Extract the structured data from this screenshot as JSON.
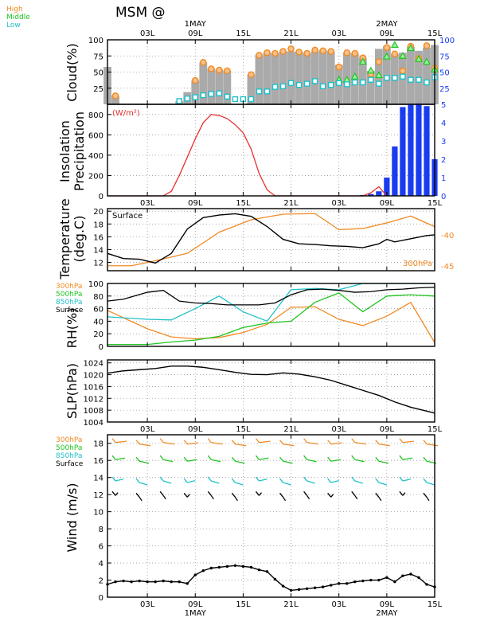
{
  "title": "MSM  @",
  "colors": {
    "high": "#f08a24",
    "middle": "#22c422",
    "low": "#20c0c8",
    "total_cloud": "#aaaaaa",
    "insolation": "#e83030",
    "precip": "#1a3cf0",
    "surface": "#000000",
    "h300": "#f08a24",
    "h500": "#22c422",
    "h850": "#20c0c8"
  },
  "time_axis": {
    "labels": [
      "03L",
      "09L",
      "15L",
      "21L",
      "03L",
      "09L",
      "15L"
    ],
    "label_hours": [
      3,
      9,
      15,
      21,
      27,
      33,
      39
    ],
    "dates_top": [
      {
        "hour": 9,
        "text": "1MAY"
      },
      {
        "hour": 33,
        "text": "2MAY"
      }
    ],
    "dates_bottom": [
      {
        "hour": 9,
        "text": "1MAY"
      },
      {
        "hour": 33,
        "text": "2MAY"
      }
    ],
    "range": [
      -2,
      39
    ]
  },
  "chart_data": [
    {
      "type": "bar",
      "panel": "cloud",
      "ylabel": "Cloud(%)",
      "legend": [
        "High",
        "Middle",
        "Low"
      ],
      "ylim": [
        0,
        100
      ],
      "left_ticks": [
        25,
        50,
        75,
        100
      ],
      "right_ticks": [
        25,
        50,
        75,
        100
      ],
      "x": [
        -2,
        -1,
        0,
        1,
        2,
        3,
        4,
        5,
        6,
        7,
        8,
        9,
        10,
        11,
        12,
        13,
        14,
        15,
        16,
        17,
        18,
        19,
        20,
        21,
        22,
        23,
        24,
        25,
        26,
        27,
        28,
        29,
        30,
        31,
        32,
        33,
        34,
        35,
        36,
        37,
        38,
        39
      ],
      "total": [
        58,
        13,
        0,
        0,
        0,
        0,
        0,
        0,
        0,
        5,
        19,
        37,
        65,
        55,
        53,
        52,
        0,
        0,
        46,
        76,
        80,
        79,
        82,
        82,
        81,
        79,
        82,
        84,
        82,
        61,
        80,
        79,
        72,
        52,
        86,
        90,
        78,
        80,
        89,
        83,
        88,
        92
      ],
      "high": [
        null,
        13,
        null,
        null,
        null,
        null,
        null,
        null,
        null,
        null,
        null,
        37,
        65,
        55,
        53,
        52,
        null,
        null,
        46,
        76,
        80,
        79,
        82,
        86,
        81,
        79,
        84,
        83,
        82,
        58,
        80,
        79,
        72,
        47,
        66,
        88,
        78,
        52,
        90,
        71,
        91,
        56
      ],
      "middle": [
        null,
        null,
        null,
        null,
        null,
        null,
        null,
        null,
        null,
        null,
        null,
        null,
        null,
        null,
        null,
        null,
        null,
        null,
        null,
        null,
        null,
        null,
        null,
        null,
        null,
        null,
        null,
        null,
        null,
        38,
        38,
        43,
        66,
        52,
        45,
        74,
        92,
        75,
        87,
        70,
        66,
        54
      ],
      "low": [
        null,
        null,
        null,
        null,
        null,
        null,
        null,
        null,
        null,
        5,
        9,
        11,
        14,
        16,
        17,
        12,
        8,
        8,
        8,
        20,
        20,
        27,
        28,
        33,
        30,
        32,
        36,
        28,
        30,
        33,
        31,
        34,
        34,
        38,
        32,
        41,
        41,
        43,
        38,
        38,
        34,
        42
      ]
    },
    {
      "type": "bar",
      "panel": "insolation_precipitation",
      "ylabel_lines": [
        "Insolation",
        "Precipitation"
      ],
      "unit_label": "(W/m²)",
      "left_ylim": [
        0,
        900
      ],
      "left_ticks": [
        0,
        200,
        400,
        600,
        800
      ],
      "right_ylim": [
        0,
        5
      ],
      "right_ticks": [
        0,
        1,
        2,
        3,
        4,
        5
      ],
      "insolation": {
        "x": [
          -2,
          0,
          2,
          4,
          5,
          6,
          7,
          8,
          9,
          10,
          11,
          12,
          13,
          14,
          15,
          16,
          17,
          18,
          19,
          20,
          21,
          22,
          24,
          26,
          28,
          30,
          31,
          32,
          33
        ],
        "y": [
          0,
          0,
          0,
          0,
          0,
          45,
          200,
          380,
          560,
          720,
          800,
          790,
          760,
          700,
          620,
          460,
          220,
          60,
          0,
          0,
          0,
          0,
          0,
          0,
          0,
          0,
          30,
          90,
          0
        ]
      },
      "precip": {
        "x": [
          30,
          31,
          32,
          33,
          34,
          35,
          36,
          37,
          38,
          39
        ],
        "y": [
          0.05,
          0.1,
          0.25,
          1.0,
          2.7,
          4.85,
          5.0,
          5.05,
          4.9,
          2.0
        ]
      }
    },
    {
      "type": "line",
      "panel": "temperature",
      "ylabel_lines": [
        "Temperature",
        "(deg.C)"
      ],
      "left_ylim": [
        10.7,
        20.4
      ],
      "left_ticks": [
        12,
        14,
        16,
        18,
        20
      ],
      "right_ticks": [
        -40,
        -45
      ],
      "surface_label": "Surface",
      "h300_label": "300hPa",
      "series": [
        {
          "name": "Surface",
          "axis": "left",
          "x": [
            -2,
            0,
            2,
            4,
            6,
            8,
            10,
            12,
            14,
            16,
            18,
            20,
            22,
            24,
            26,
            28,
            30,
            32,
            33,
            34,
            36,
            38,
            39
          ],
          "y": [
            13.4,
            12.6,
            12.5,
            11.9,
            13.4,
            17.2,
            19.0,
            19.4,
            19.6,
            19.2,
            17.6,
            15.6,
            14.9,
            14.8,
            14.6,
            14.5,
            14.3,
            14.9,
            15.6,
            15.2,
            15.7,
            16.2,
            16.3
          ]
        },
        {
          "name": "300hPa",
          "axis": "right",
          "ylim_right": [
            -45.8,
            -35.8
          ],
          "x": [
            -2,
            1,
            4,
            8,
            12,
            16,
            20,
            24,
            27,
            30,
            33,
            36,
            39
          ],
          "y": [
            -45.0,
            -45.0,
            -44.2,
            -43.0,
            -39.6,
            -37.6,
            -36.7,
            -36.6,
            -39.2,
            -39.0,
            -38.1,
            -37.0,
            -38.7
          ]
        }
      ]
    },
    {
      "type": "line",
      "panel": "rh",
      "ylabel": "RH(%)",
      "legend": [
        "300hPa",
        "500hPa",
        "850hPa",
        "Surface"
      ],
      "ylim": [
        0,
        100
      ],
      "left_ticks": [
        0,
        20,
        40,
        60,
        80,
        100
      ],
      "series": [
        {
          "name": "Surface",
          "x": [
            -2,
            0,
            3,
            5,
            7,
            9,
            11,
            13,
            15,
            17,
            19,
            21,
            23,
            25,
            27,
            29,
            31,
            33,
            35,
            37,
            39
          ],
          "y": [
            72,
            75,
            86,
            89,
            72,
            69,
            68,
            66,
            66,
            66,
            69,
            82,
            90,
            91,
            89,
            86,
            87,
            90,
            91,
            93,
            94
          ]
        },
        {
          "name": "850hPa",
          "x": [
            -2,
            3,
            6,
            9,
            12,
            15,
            18,
            21,
            24,
            27,
            30,
            33,
            36,
            39
          ],
          "y": [
            47,
            43,
            42,
            60,
            80,
            55,
            40,
            90,
            92,
            90,
            100,
            100,
            100,
            100
          ]
        },
        {
          "name": "500hPa",
          "x": [
            -2,
            3,
            6,
            9,
            12,
            15,
            18,
            21,
            24,
            27,
            30,
            33,
            36,
            39
          ],
          "y": [
            3,
            3,
            7,
            10,
            16,
            30,
            37,
            40,
            70,
            85,
            55,
            80,
            82,
            80
          ]
        },
        {
          "name": "300hPa",
          "x": [
            -2,
            3,
            6,
            9,
            12,
            15,
            18,
            21,
            24,
            27,
            30,
            33,
            36,
            39
          ],
          "y": [
            57,
            28,
            15,
            12,
            14,
            22,
            35,
            62,
            63,
            43,
            33,
            48,
            70,
            6
          ]
        }
      ]
    },
    {
      "type": "line",
      "panel": "slp",
      "ylabel": "SLP(hPa)",
      "ylim": [
        1004,
        1025
      ],
      "left_ticks": [
        1004,
        1008,
        1012,
        1016,
        1020,
        1024
      ],
      "series": [
        {
          "name": "SLP",
          "x": [
            -2,
            0,
            2,
            4,
            6,
            8,
            10,
            12,
            14,
            16,
            18,
            20,
            22,
            24,
            26,
            28,
            30,
            32,
            34,
            36,
            38,
            39
          ],
          "y": [
            1020.5,
            1021.3,
            1021.7,
            1022.1,
            1022.9,
            1022.9,
            1022.5,
            1021.7,
            1020.8,
            1020.1,
            1020.0,
            1020.6,
            1020.2,
            1019.3,
            1018.1,
            1016.4,
            1014.7,
            1013.0,
            1010.8,
            1009.0,
            1007.7,
            1007.0
          ]
        }
      ]
    },
    {
      "type": "line",
      "panel": "wind",
      "ylabel": "Wind (m/s)",
      "legend": [
        "300hPa",
        "500hPa",
        "850hPa",
        "Surface"
      ],
      "ylim": [
        0,
        19
      ],
      "left_ticks": [
        0,
        2,
        4,
        6,
        8,
        10,
        12,
        14,
        16,
        18
      ],
      "series": [
        {
          "name": "Surface",
          "x": [
            -2,
            -1,
            0,
            1,
            2,
            3,
            4,
            5,
            6,
            7,
            8,
            9,
            10,
            11,
            12,
            13,
            14,
            15,
            16,
            17,
            18,
            19,
            20,
            21,
            22,
            23,
            24,
            25,
            26,
            27,
            28,
            29,
            30,
            31,
            32,
            33,
            34,
            35,
            36,
            37,
            38,
            39
          ],
          "y": [
            1.5,
            1.8,
            1.9,
            1.8,
            1.9,
            1.8,
            1.8,
            1.9,
            1.8,
            1.8,
            1.6,
            2.6,
            3.1,
            3.4,
            3.5,
            3.6,
            3.7,
            3.6,
            3.5,
            3.2,
            3.0,
            2.1,
            1.3,
            0.8,
            0.9,
            1.0,
            1.1,
            1.2,
            1.4,
            1.6,
            1.6,
            1.8,
            1.9,
            2.0,
            2.0,
            2.3,
            1.8,
            2.5,
            2.7,
            2.3,
            1.5,
            1.2
          ]
        }
      ]
    }
  ]
}
